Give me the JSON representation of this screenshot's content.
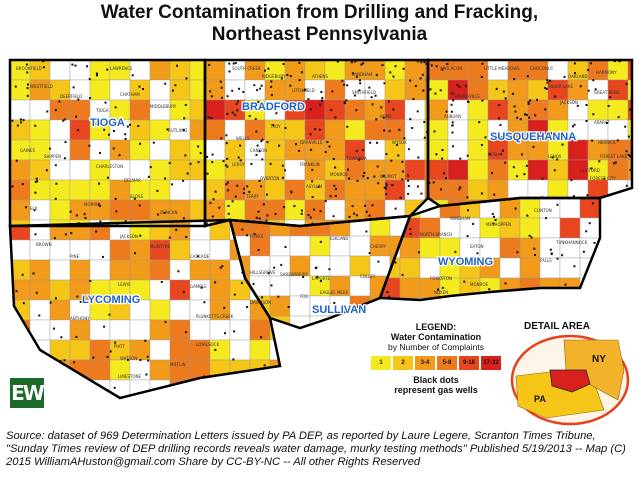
{
  "title": {
    "line1": "Water Contamination from Drilling and Fracking,",
    "line2": "Northeast Pennsylvania"
  },
  "counties": [
    {
      "name": "TIOGA",
      "label": "TIOGA"
    },
    {
      "name": "BRADFORD",
      "label": "BRADFORD"
    },
    {
      "name": "SUSQUEHANNA",
      "label": "SUSQUEHANNA"
    },
    {
      "name": "LYCOMING",
      "label": "LYCOMING"
    },
    {
      "name": "SULLIVAN",
      "label": "SULLIVAN"
    },
    {
      "name": "WYOMING",
      "label": "WYOMING"
    }
  ],
  "townships": {
    "tioga": [
      "BROOKFIELD",
      "LAWRENCE",
      "WESTFIELD",
      "DEERFIELD",
      "CHATHAM",
      "MIDDLEBURY",
      "TIOGA",
      "RUTLAND",
      "GAINES",
      "SHIPPEN",
      "CHARLESTON",
      "DELMAR",
      "BLOSS",
      "MORRIS",
      "ELK",
      "DUNCAN"
    ],
    "bradford": [
      "SOUTH CREEK",
      "RIDGEBURY",
      "ATHENS",
      "WINDHAM",
      "LITCHFIELD",
      "SMITHFIELD",
      "WELLS",
      "ROME",
      "TROY",
      "GRANVILLE",
      "FRANKLIN",
      "TOWANDA",
      "WYSOX",
      "MONROE",
      "ASYLUM",
      "WILMOT",
      "TERRY",
      "OVERTON",
      "LEROY",
      "CANTON"
    ],
    "susquehanna": [
      "APOLACON",
      "LITTLE MEADOWS",
      "CHOCONUT",
      "SILVER LAKE",
      "OAKLAND",
      "HARMONY",
      "GREAT BEND",
      "JACKSON",
      "ARARAT",
      "HERRICK",
      "FOREST LAKE",
      "RUSH",
      "LENOX",
      "CLIFFORD",
      "FOREST CITY",
      "SPRINGVILLE",
      "AUBURN"
    ],
    "lycoming": [
      "JACKSON",
      "McINTYRE",
      "CASCADE",
      "PINE",
      "BROWN",
      "LEWIS",
      "GAMBLE",
      "PLUNKETTS CREEK",
      "ANTHONY",
      "PIATT",
      "WATSON",
      "LIMESTONE",
      "MIFFLIN",
      "LOYALSOCK"
    ],
    "sullivan": [
      "FORKS",
      "ELKLAND",
      "CHERRY",
      "HILLSGROVE",
      "SHREWSBURY",
      "COLLEY",
      "LAPORTE",
      "DAVIDSON",
      "FOX",
      "EAGLES MERE"
    ],
    "wyoming": [
      "NORTH BRANCH",
      "WINDHAM",
      "MESHOPPEN",
      "EATON",
      "FALLS",
      "TUNKHANNOCK",
      "FORKSTON",
      "NOXEN",
      "MONROE",
      "CLINTON"
    ]
  },
  "legend": {
    "title_line1": "LEGEND:",
    "title_line2": "Water Contamination",
    "subtitle": "by Number of Complaints",
    "bins": [
      {
        "label": "1",
        "color": "#f5ea1e"
      },
      {
        "label": "2",
        "color": "#f5c518"
      },
      {
        "label": "3-4",
        "color": "#f29a1a"
      },
      {
        "label": "5-8",
        "color": "#ee7a1e"
      },
      {
        "label": "9-16",
        "color": "#e8461e"
      },
      {
        "label": "17-32",
        "color": "#d8201c"
      }
    ],
    "dots_line1": "Black dots",
    "dots_line2": "represent gas wells"
  },
  "inset": {
    "title": "DETAIL AREA",
    "ny_label": "NY",
    "pa_label": "PA"
  },
  "logo": {
    "text": "EW"
  },
  "source": "Source: dataset of 969 Determination Letters issued by PA DEP,  as reported by Laure Legere, Scranton Times Tribune, \"Sunday Times review of DEP drilling records reveals water damage, murky testing methods\"  Published 5/19/2013 -- Map (C) 2015 WilliamAHuston@gmail.com Share by CC-BY-NC -- All other Rights Reserved",
  "colors": {
    "none": "#ffffff",
    "c1": "#f5ea1e",
    "c2": "#f5c518",
    "c3": "#f29a1a",
    "c4": "#ee7a1e",
    "c5": "#e8461e",
    "c6": "#d8201c",
    "county_label": "#1e63c8",
    "logo_bg": "#1d6b2a"
  }
}
